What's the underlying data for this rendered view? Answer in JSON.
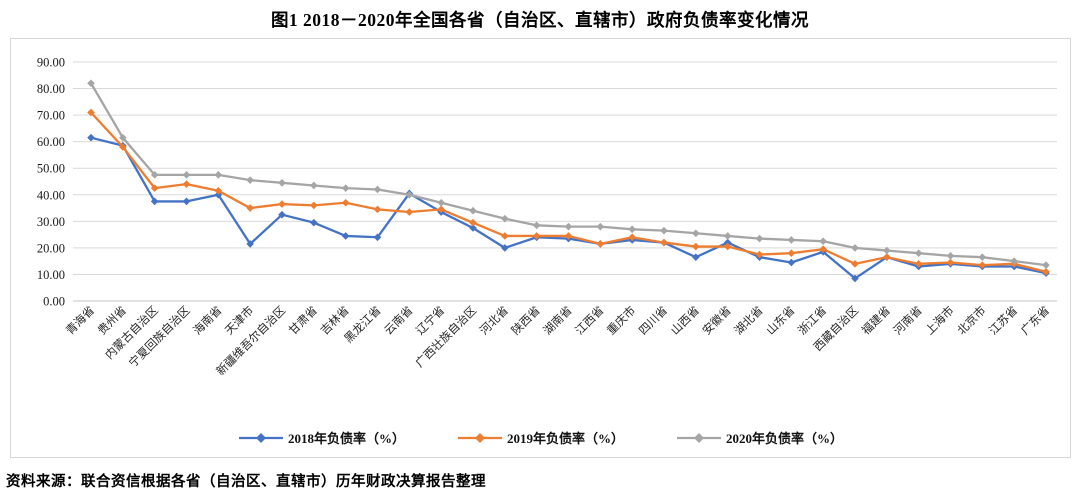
{
  "source_note": "资料来源：联合资信根据各省（自治区、直辖市）历年财政决算报告整理",
  "chart_data": {
    "type": "line",
    "title": "图1 2018－2020年全国各省（自治区、直辖市）政府负债率变化情况",
    "marker": "diamond",
    "grid": true,
    "legend_position": "bottom",
    "ylim": [
      0,
      90
    ],
    "y_tick_step": 10,
    "y_tick_labels": [
      "0.00",
      "10.00",
      "20.00",
      "30.00",
      "40.00",
      "50.00",
      "60.00",
      "70.00",
      "80.00",
      "90.00"
    ],
    "categories": [
      "青海省",
      "贵州省",
      "内蒙古自治区",
      "宁夏回族自治区",
      "海南省",
      "天津市",
      "新疆维吾尔自治区",
      "甘肃省",
      "吉林省",
      "黑龙江省",
      "云南省",
      "辽宁省",
      "广西壮族自治区",
      "河北省",
      "陕西省",
      "湖南省",
      "江西省",
      "重庆市",
      "四川省",
      "山西省",
      "安徽省",
      "湖北省",
      "山东省",
      "浙江省",
      "西藏自治区",
      "福建省",
      "河南省",
      "上海市",
      "北京市",
      "江苏省",
      "广东省"
    ],
    "series": [
      {
        "name": "2018年负债率（%）",
        "color": "#4472C4",
        "values": [
          61.5,
          58.5,
          37.5,
          37.5,
          40.0,
          21.5,
          32.5,
          29.5,
          24.5,
          24.0,
          40.5,
          33.5,
          27.5,
          20.0,
          24.0,
          23.5,
          21.5,
          23.0,
          22.0,
          16.5,
          22.0,
          16.5,
          14.5,
          18.5,
          8.5,
          16.5,
          13.0,
          14.0,
          13.0,
          13.0,
          10.5
        ]
      },
      {
        "name": "2019年负债率（%）",
        "color": "#ED7D31",
        "values": [
          71.0,
          58.0,
          42.5,
          44.0,
          41.5,
          35.0,
          36.5,
          36.0,
          37.0,
          34.5,
          33.5,
          34.5,
          29.5,
          24.5,
          24.5,
          24.5,
          21.5,
          24.0,
          22.0,
          20.5,
          20.5,
          17.5,
          18.0,
          19.5,
          14.0,
          16.5,
          14.0,
          14.5,
          13.5,
          14.0,
          11.0
        ]
      },
      {
        "name": "2020年负债率（%）",
        "color": "#A5A5A5",
        "values": [
          82.0,
          61.5,
          47.5,
          47.5,
          47.5,
          45.5,
          44.5,
          43.5,
          42.5,
          42.0,
          40.0,
          37.0,
          34.0,
          31.0,
          28.5,
          28.0,
          28.0,
          27.0,
          26.5,
          25.5,
          24.5,
          23.5,
          23.0,
          22.5,
          20.0,
          19.0,
          18.0,
          17.0,
          16.5,
          15.0,
          13.5
        ]
      }
    ],
    "colors": {
      "axis_text": "#1a1a1a",
      "gridline": "#d9d9d9",
      "frame_border": "#d7d7d7"
    }
  }
}
